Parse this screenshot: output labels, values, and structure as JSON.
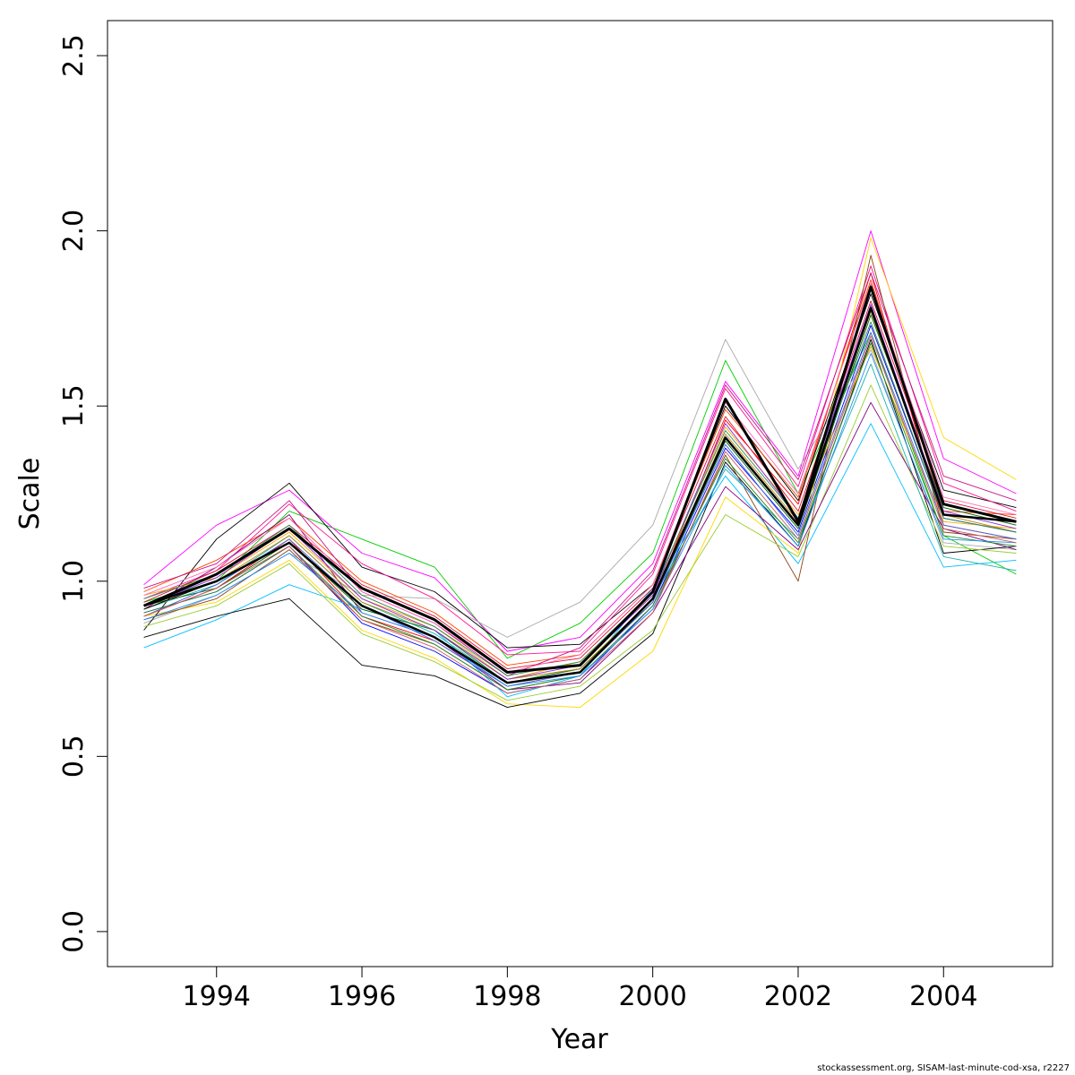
{
  "chart_data": {
    "type": "line",
    "xlabel": "Year",
    "ylabel": "Scale",
    "x": [
      1993,
      1994,
      1995,
      1996,
      1997,
      1998,
      1999,
      2000,
      2001,
      2002,
      2003,
      2004,
      2005
    ],
    "xlim": [
      1992.5,
      2005.5
    ],
    "ylim": [
      -0.1,
      2.6
    ],
    "xticks": [
      1994,
      1996,
      1998,
      2000,
      2002,
      2004
    ],
    "xtick_labels": [
      "1994",
      "1996",
      "1998",
      "2000",
      "2002",
      "2004"
    ],
    "yticks": [
      0,
      0.5,
      1,
      1.5,
      2,
      2.5
    ],
    "ytick_labels": [
      "0.0",
      "0.5",
      "1.0",
      "1.5",
      "2.0",
      "2.5"
    ],
    "grid": false,
    "legend": "none",
    "central": [
      0.93,
      1.02,
      1.15,
      0.98,
      0.89,
      0.74,
      0.76,
      0.97,
      1.52,
      1.17,
      1.84,
      1.22,
      1.17
    ],
    "central2": [
      0.93,
      1.0,
      1.11,
      0.93,
      0.84,
      0.71,
      0.74,
      0.95,
      1.41,
      1.16,
      1.78,
      1.19,
      1.17
    ],
    "series": [
      {
        "color": "#000000",
        "values": [
          0.93,
          1.02,
          1.15,
          0.98,
          0.89,
          0.74,
          0.76,
          0.97,
          1.52,
          1.17,
          1.84,
          1.22,
          1.17
        ]
      },
      {
        "color": "#ff0000",
        "values": [
          0.9,
          0.98,
          1.12,
          0.9,
          0.83,
          0.7,
          0.74,
          0.94,
          1.46,
          1.22,
          1.88,
          1.16,
          1.12
        ]
      },
      {
        "color": "#00cd00",
        "values": [
          0.94,
          1.0,
          1.2,
          1.12,
          1.04,
          0.78,
          0.88,
          1.08,
          1.63,
          1.25,
          1.71,
          1.13,
          1.02
        ]
      },
      {
        "color": "#0000ff",
        "values": [
          0.91,
          0.97,
          1.1,
          0.88,
          0.8,
          0.68,
          0.72,
          0.93,
          1.38,
          1.14,
          1.73,
          1.18,
          1.14
        ]
      },
      {
        "color": "#00bfff",
        "values": [
          0.81,
          0.89,
          0.99,
          0.92,
          0.86,
          0.67,
          0.73,
          0.98,
          1.3,
          1.05,
          1.45,
          1.04,
          1.06
        ]
      },
      {
        "color": "#ff00ff",
        "values": [
          0.99,
          1.16,
          1.26,
          1.08,
          1.01,
          0.8,
          0.84,
          1.05,
          1.57,
          1.3,
          2.0,
          1.35,
          1.25
        ]
      },
      {
        "color": "#ffd700",
        "values": [
          0.9,
          0.94,
          1.06,
          0.86,
          0.78,
          0.65,
          0.64,
          0.8,
          1.24,
          1.08,
          1.98,
          1.41,
          1.29
        ]
      },
      {
        "color": "#a9a9a9",
        "values": [
          0.88,
          0.96,
          1.08,
          0.96,
          0.95,
          0.84,
          0.94,
          1.16,
          1.69,
          1.32,
          1.66,
          1.11,
          1.09
        ]
      },
      {
        "color": "#000000",
        "values": [
          0.84,
          0.9,
          0.95,
          0.76,
          0.73,
          0.64,
          0.68,
          0.85,
          1.34,
          1.1,
          1.69,
          1.08,
          1.1
        ]
      },
      {
        "color": "#000000",
        "values": [
          0.86,
          1.12,
          1.28,
          1.04,
          0.97,
          0.81,
          0.82,
          0.99,
          1.5,
          1.23,
          1.82,
          1.26,
          1.21
        ]
      },
      {
        "color": "#ff1493",
        "values": [
          0.95,
          1.03,
          1.22,
          1.05,
          0.95,
          0.79,
          0.8,
          1.02,
          1.55,
          1.27,
          1.9,
          1.28,
          1.2
        ]
      },
      {
        "color": "#ff4500",
        "values": [
          0.97,
          1.06,
          1.18,
          1.0,
          0.91,
          0.76,
          0.79,
          0.99,
          1.49,
          1.24,
          1.86,
          1.2,
          1.19
        ]
      },
      {
        "color": "#8b4513",
        "values": [
          0.89,
          0.95,
          1.09,
          0.89,
          0.82,
          0.69,
          0.73,
          0.92,
          1.36,
          1.0,
          1.93,
          1.14,
          1.12
        ]
      },
      {
        "color": "#9acd32",
        "values": [
          0.87,
          0.93,
          1.05,
          0.85,
          0.77,
          0.66,
          0.7,
          0.86,
          1.19,
          1.07,
          1.56,
          1.1,
          1.08
        ]
      },
      {
        "color": "#20b2aa",
        "values": [
          0.92,
          0.99,
          1.13,
          0.94,
          0.85,
          0.71,
          0.75,
          0.95,
          1.32,
          1.12,
          1.62,
          1.07,
          1.03
        ]
      },
      {
        "color": "#800080",
        "values": [
          0.92,
          1.04,
          1.19,
          0.91,
          0.84,
          0.69,
          0.71,
          0.91,
          1.27,
          1.09,
          1.51,
          1.15,
          1.09
        ]
      },
      {
        "color": "#c71585",
        "values": [
          0.98,
          1.05,
          1.23,
          0.97,
          0.88,
          0.73,
          0.81,
          1.03,
          1.56,
          1.29,
          1.88,
          1.3,
          1.23
        ]
      },
      {
        "color": "#ffa500",
        "values": [
          0.96,
          1.01,
          1.14,
          0.95,
          0.87,
          0.72,
          0.77,
          0.96,
          1.44,
          1.19,
          1.67,
          1.17,
          1.15
        ]
      },
      {
        "color": "#006400",
        "values": [
          0.93,
          0.98,
          1.11,
          0.92,
          0.86,
          0.71,
          0.75,
          0.94,
          1.4,
          1.15,
          1.76,
          1.21,
          1.16
        ]
      },
      {
        "color": "#4169e1",
        "values": [
          0.9,
          0.99,
          1.12,
          0.93,
          0.83,
          0.7,
          0.74,
          0.94,
          1.39,
          1.13,
          1.71,
          1.16,
          1.12
        ]
      },
      {
        "color": "#dc143c",
        "values": [
          0.94,
          1.03,
          1.16,
          0.99,
          0.9,
          0.75,
          0.78,
          0.98,
          1.47,
          1.2,
          1.8,
          1.23,
          1.18
        ]
      },
      {
        "color": "#228b22",
        "values": [
          0.91,
          0.97,
          1.1,
          0.9,
          0.82,
          0.69,
          0.73,
          0.93,
          1.35,
          1.11,
          1.68,
          1.13,
          1.1
        ]
      },
      {
        "color": "#b8860b",
        "values": [
          0.92,
          1.0,
          1.13,
          0.94,
          0.86,
          0.72,
          0.75,
          0.95,
          1.42,
          1.17,
          1.77,
          1.19,
          1.14
        ]
      },
      {
        "color": "#ff69b4",
        "values": [
          0.96,
          1.04,
          1.18,
          0.97,
          0.88,
          0.74,
          0.79,
          0.99,
          1.51,
          1.25,
          1.85,
          1.24,
          1.19
        ]
      },
      {
        "color": "#1e90ff",
        "values": [
          0.89,
          0.96,
          1.08,
          0.91,
          0.84,
          0.7,
          0.73,
          0.92,
          1.33,
          1.1,
          1.65,
          1.12,
          1.11
        ]
      },
      {
        "color": "#8a2be2",
        "values": [
          0.93,
          1.01,
          1.15,
          0.95,
          0.86,
          0.72,
          0.76,
          0.96,
          1.45,
          1.18,
          1.79,
          1.2,
          1.15
        ]
      },
      {
        "color": "#cd5c5c",
        "values": [
          0.9,
          0.98,
          1.1,
          0.89,
          0.81,
          0.68,
          0.72,
          0.91,
          1.37,
          1.12,
          1.7,
          1.15,
          1.11
        ]
      },
      {
        "color": "#2e8b57",
        "values": [
          0.95,
          1.02,
          1.16,
          0.96,
          0.87,
          0.73,
          0.77,
          0.97,
          1.43,
          1.18,
          1.74,
          1.18,
          1.14
        ]
      },
      {
        "color": "#000000",
        "values": [
          0.92,
          1.0,
          1.11,
          0.93,
          0.84,
          0.71,
          0.74,
          0.95,
          1.41,
          1.16,
          1.78,
          1.19,
          1.17
        ]
      }
    ]
  },
  "footer": {
    "text": "stockassessment.org, SISAM-last-minute-cod-xsa, r2227"
  }
}
